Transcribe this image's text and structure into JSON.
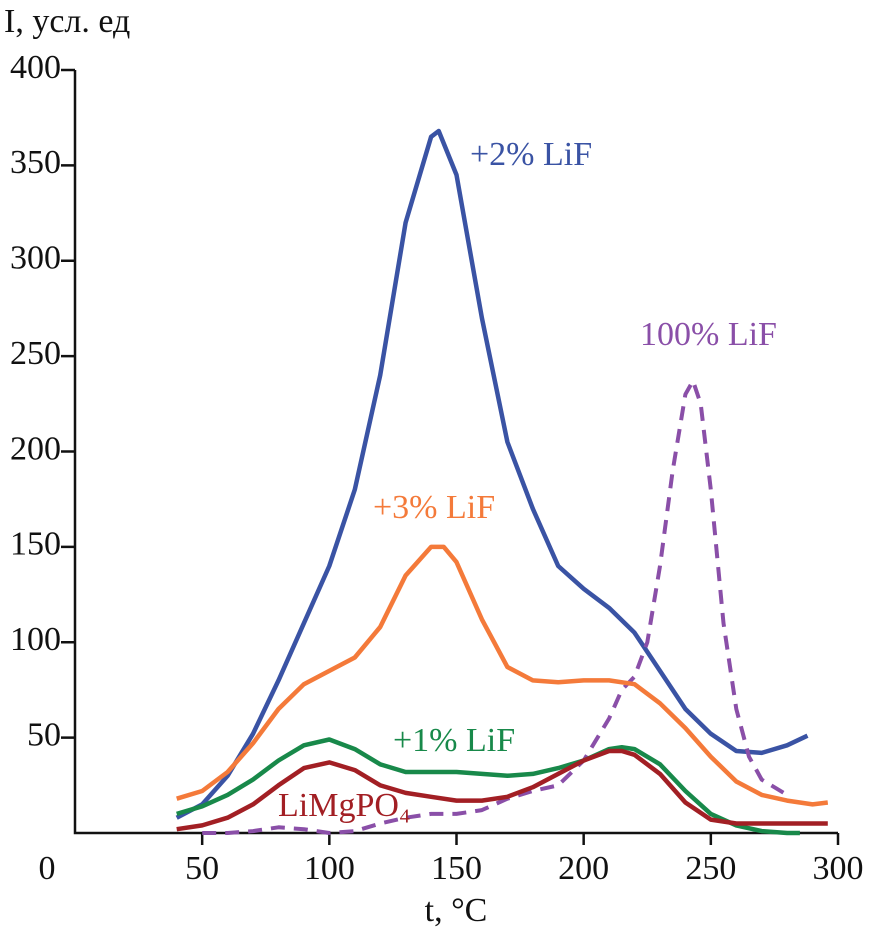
{
  "chart_data": {
    "type": "line",
    "y_label": "I, усл. ед",
    "x_label": "t, °C",
    "xlim": [
      0,
      300
    ],
    "xticks": [
      0,
      50,
      100,
      150,
      200,
      250,
      300
    ],
    "ylim": [
      0,
      400
    ],
    "yticks": [
      50,
      100,
      150,
      200,
      250,
      300,
      350,
      400
    ],
    "series": [
      {
        "name": "+2% LiF",
        "color": "#3a53a4",
        "style": "solid",
        "x": [
          40,
          50,
          60,
          70,
          80,
          90,
          100,
          110,
          120,
          130,
          140,
          143,
          150,
          160,
          170,
          180,
          190,
          200,
          210,
          220,
          230,
          240,
          250,
          260,
          270,
          280,
          288
        ],
        "values": [
          8,
          15,
          30,
          52,
          80,
          110,
          140,
          180,
          240,
          320,
          365,
          368,
          345,
          270,
          205,
          170,
          140,
          128,
          118,
          105,
          85,
          65,
          52,
          43,
          42,
          46,
          51
        ]
      },
      {
        "name": "100% LiF",
        "color": "#8a4fa8",
        "style": "dashed",
        "x": [
          50,
          60,
          70,
          80,
          90,
          100,
          110,
          120,
          130,
          140,
          150,
          160,
          170,
          180,
          190,
          200,
          210,
          215,
          220,
          225,
          230,
          235,
          240,
          243,
          246,
          250,
          255,
          260,
          265,
          270,
          280
        ],
        "values": [
          0,
          0,
          1,
          3,
          2,
          0,
          1,
          5,
          8,
          10,
          10,
          12,
          18,
          22,
          25,
          38,
          60,
          75,
          82,
          100,
          140,
          190,
          230,
          237,
          225,
          180,
          110,
          65,
          40,
          28,
          20
        ]
      },
      {
        "name": "+3% LiF",
        "color": "#f47a3a",
        "style": "solid",
        "x": [
          40,
          50,
          60,
          70,
          80,
          90,
          100,
          110,
          120,
          130,
          140,
          145,
          150,
          160,
          170,
          180,
          190,
          200,
          210,
          220,
          230,
          240,
          250,
          260,
          270,
          280,
          290,
          296
        ],
        "values": [
          18,
          22,
          32,
          47,
          65,
          78,
          85,
          92,
          108,
          135,
          150,
          150,
          142,
          112,
          87,
          80,
          79,
          80,
          80,
          78,
          68,
          55,
          40,
          27,
          20,
          17,
          15,
          16
        ]
      },
      {
        "name": "+1% LiF",
        "color": "#18894a",
        "style": "solid",
        "x": [
          40,
          50,
          60,
          70,
          80,
          90,
          100,
          110,
          120,
          130,
          140,
          150,
          160,
          170,
          180,
          190,
          200,
          210,
          215,
          220,
          230,
          240,
          250,
          260,
          270,
          280,
          285
        ],
        "values": [
          10,
          14,
          20,
          28,
          38,
          46,
          49,
          44,
          36,
          32,
          32,
          32,
          31,
          30,
          31,
          34,
          38,
          44,
          45,
          44,
          36,
          22,
          10,
          4,
          1,
          0,
          0
        ]
      },
      {
        "name": "LiMgPO₄",
        "color": "#a21f24",
        "style": "solid",
        "x": [
          40,
          50,
          60,
          70,
          80,
          90,
          100,
          110,
          120,
          130,
          140,
          150,
          160,
          170,
          180,
          190,
          200,
          210,
          215,
          220,
          230,
          240,
          250,
          260,
          270,
          280,
          296
        ],
        "values": [
          2,
          4,
          8,
          15,
          25,
          34,
          37,
          33,
          25,
          21,
          19,
          17,
          17,
          19,
          24,
          31,
          38,
          43,
          43,
          41,
          31,
          16,
          7,
          5,
          5,
          5,
          5
        ]
      }
    ]
  }
}
